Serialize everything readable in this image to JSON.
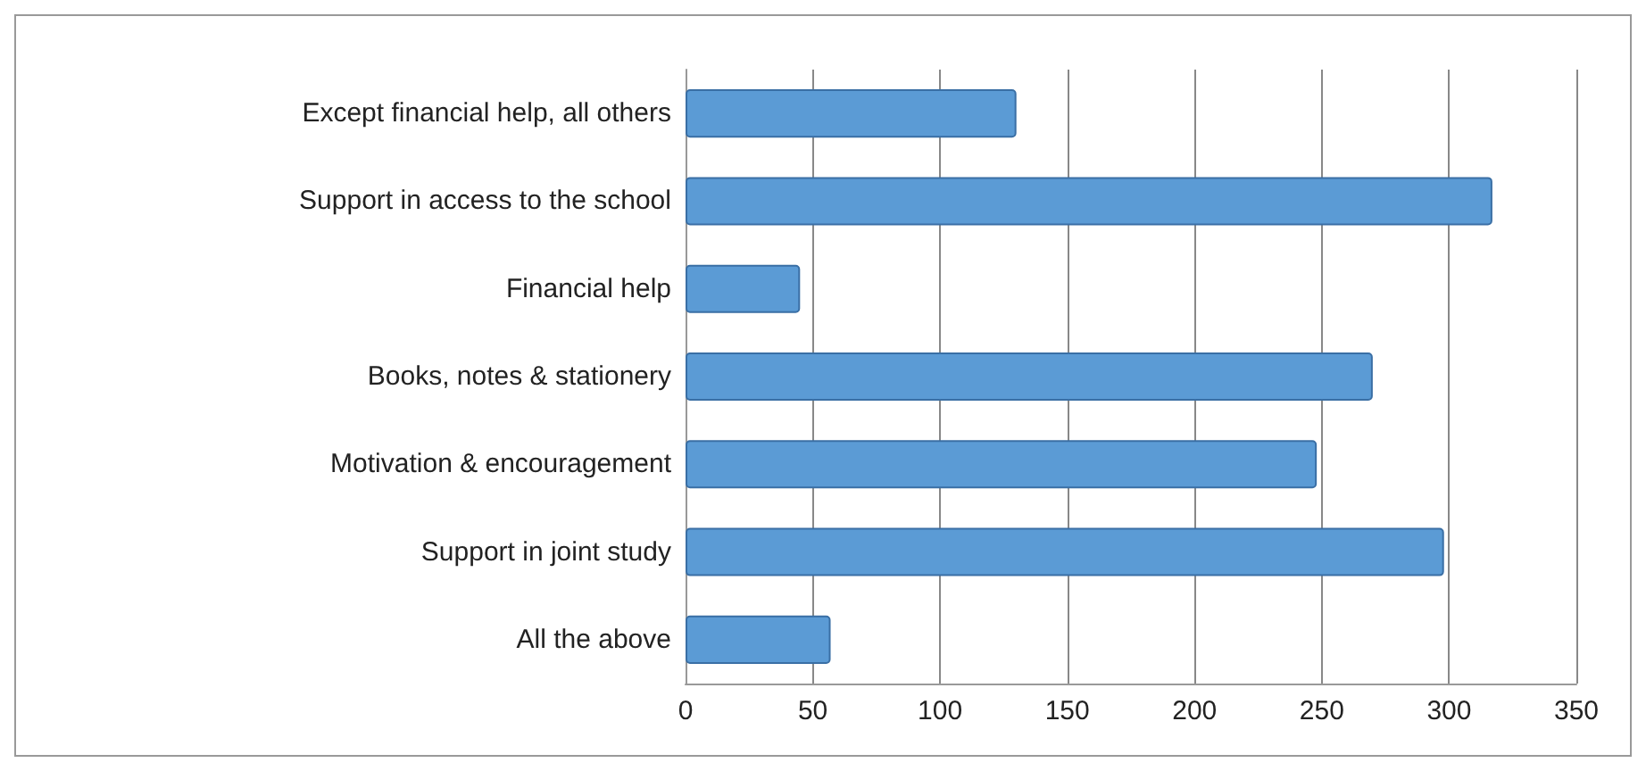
{
  "chart_data": {
    "type": "bar",
    "orientation": "horizontal",
    "categories": [
      "Except financial help, all others",
      "Support in access to the school",
      "Financial help",
      "Books, notes & stationery",
      "Motivation & encouragement",
      "Support in joint study",
      "All the above"
    ],
    "values": [
      130,
      317,
      45,
      270,
      248,
      298,
      57
    ],
    "color": "#5b9bd5",
    "xlim": [
      0,
      350
    ],
    "xticks": [
      0,
      50,
      100,
      150,
      200,
      250,
      300,
      350
    ],
    "grid": "x"
  }
}
